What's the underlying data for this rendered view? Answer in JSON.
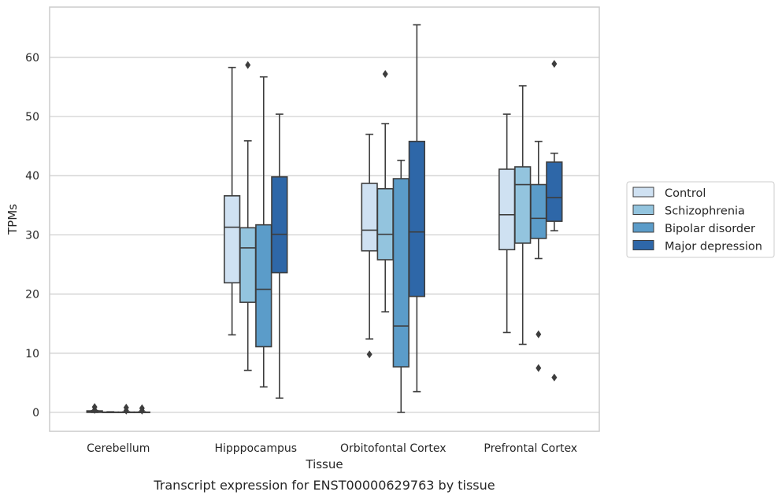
{
  "chart_data": {
    "type": "box",
    "xlabel": "Tissue",
    "ylabel": "TPMs",
    "caption": "Transcript expression for ENST00000629763 by tissue",
    "ylim": [
      -3.2,
      68.5
    ],
    "yticks": [
      0,
      10,
      20,
      30,
      40,
      50,
      60
    ],
    "grid": "horizontal",
    "legend_position": "right",
    "categories": [
      "Cerebellum",
      "Hipppocampus",
      "Orbitofontal Cortex",
      "Prefrontal Cortex"
    ],
    "series": [
      {
        "name": "Control",
        "color": "#cfe1f2",
        "boxes": [
          {
            "whislo": 0.0,
            "q1": 0.0,
            "med": 0.1,
            "q3": 0.25,
            "whishi": 0.3,
            "fliers": [
              0.9,
              0.4
            ]
          },
          {
            "whislo": 13.1,
            "q1": 21.9,
            "med": 31.3,
            "q3": 36.6,
            "whishi": 58.3,
            "fliers": []
          },
          {
            "whislo": 12.4,
            "q1": 27.3,
            "med": 30.8,
            "q3": 38.7,
            "whishi": 47.0,
            "fliers": [
              9.8
            ]
          },
          {
            "whislo": 13.5,
            "q1": 27.5,
            "med": 33.4,
            "q3": 41.1,
            "whishi": 50.4,
            "fliers": []
          }
        ]
      },
      {
        "name": "Schizophrenia",
        "color": "#93c4de",
        "boxes": [
          {
            "whislo": 0.0,
            "q1": 0.0,
            "med": 0.0,
            "q3": 0.05,
            "whishi": 0.1,
            "fliers": []
          },
          {
            "whislo": 7.1,
            "q1": 18.6,
            "med": 27.8,
            "q3": 31.2,
            "whishi": 45.9,
            "fliers": [
              58.7
            ]
          },
          {
            "whislo": 17.0,
            "q1": 25.8,
            "med": 30.1,
            "q3": 37.8,
            "whishi": 48.8,
            "fliers": [
              57.2
            ]
          },
          {
            "whislo": 11.5,
            "q1": 28.6,
            "med": 38.5,
            "q3": 41.5,
            "whishi": 55.2,
            "fliers": []
          }
        ]
      },
      {
        "name": "Bipolar disorder",
        "color": "#5b9cc9",
        "boxes": [
          {
            "whislo": 0.0,
            "q1": 0.0,
            "med": 0.0,
            "q3": 0.05,
            "whishi": 0.1,
            "fliers": [
              0.8,
              0.3
            ]
          },
          {
            "whislo": 4.3,
            "q1": 11.1,
            "med": 20.8,
            "q3": 31.7,
            "whishi": 56.7,
            "fliers": []
          },
          {
            "whislo": 0.0,
            "q1": 7.7,
            "med": 14.6,
            "q3": 39.5,
            "whishi": 42.6,
            "fliers": []
          },
          {
            "whislo": 26.0,
            "q1": 29.4,
            "med": 32.8,
            "q3": 38.5,
            "whishi": 45.8,
            "fliers": [
              13.2,
              7.5
            ]
          }
        ]
      },
      {
        "name": "Major depression",
        "color": "#2e67a8",
        "boxes": [
          {
            "whislo": 0.0,
            "q1": 0.0,
            "med": 0.0,
            "q3": 0.05,
            "whishi": 0.1,
            "fliers": [
              0.7,
              0.3
            ]
          },
          {
            "whislo": 2.4,
            "q1": 23.6,
            "med": 30.1,
            "q3": 39.8,
            "whishi": 50.4,
            "fliers": []
          },
          {
            "whislo": 3.5,
            "q1": 19.6,
            "med": 30.5,
            "q3": 45.8,
            "whishi": 65.5,
            "fliers": []
          },
          {
            "whislo": 30.7,
            "q1": 32.3,
            "med": 36.3,
            "q3": 42.3,
            "whishi": 43.8,
            "fliers": [
              58.9,
              5.9
            ]
          }
        ]
      }
    ]
  }
}
